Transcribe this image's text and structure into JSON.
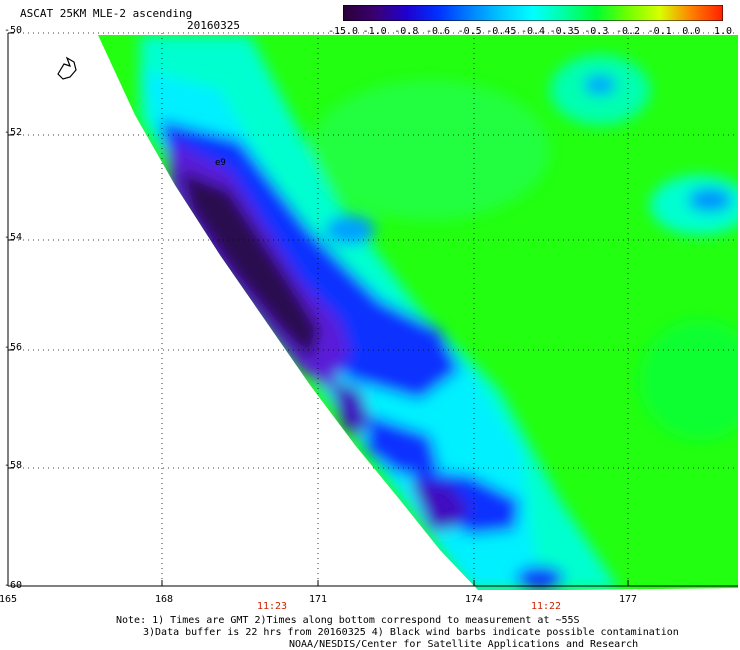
{
  "header": {
    "title": "ASCAT 25KM MLE-2 ascending",
    "date": "20160325"
  },
  "colorbar": {
    "labels": [
      "-15.0",
      "-1.0",
      "-0.8",
      "-0.6",
      "-0.5",
      "-0.45",
      "-0.4",
      "-0.35",
      "-0.3",
      "-0.2",
      "-0.1",
      "0.0",
      "1.0"
    ],
    "colors": [
      "#2a0038",
      "#3a0070",
      "#2000d0",
      "#0030ff",
      "#0080ff",
      "#00c8ff",
      "#00ffff",
      "#00ffa0",
      "#00ff30",
      "#70ff00",
      "#d8ff00",
      "#ff8000",
      "#ff2000"
    ]
  },
  "map": {
    "lat_labels": [
      "-50",
      "-52",
      "-54",
      "-56",
      "-58",
      "-60"
    ],
    "lon_labels": [
      "165",
      "168",
      "171",
      "174",
      "177"
    ],
    "time_labels": [
      "11:23",
      "11:22"
    ],
    "marker_text": "e9"
  },
  "notes": {
    "line1": "Note: 1) Times are GMT 2)Times along bottom correspond to measurement at ~55S",
    "line2": "3)Data buffer is 22 hrs from 20160325 4) Black wind barbs indicate possible contamination",
    "line3": "NOAA/NESDIS/Center for Satellite Applications and Research"
  }
}
